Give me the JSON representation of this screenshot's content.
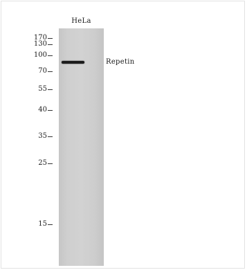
{
  "blot": {
    "lane_label": "HeLa",
    "band_label": "Repetin",
    "markers": [
      {
        "label": "170",
        "kda": 170
      },
      {
        "label": "130",
        "kda": 130
      },
      {
        "label": "100",
        "kda": 100
      },
      {
        "label": "70",
        "kda": 70
      },
      {
        "label": "55",
        "kda": 55
      },
      {
        "label": "40",
        "kda": 40
      },
      {
        "label": "35",
        "kda": 35
      },
      {
        "label": "25",
        "kda": 25
      },
      {
        "label": "15",
        "kda": 15
      }
    ]
  }
}
